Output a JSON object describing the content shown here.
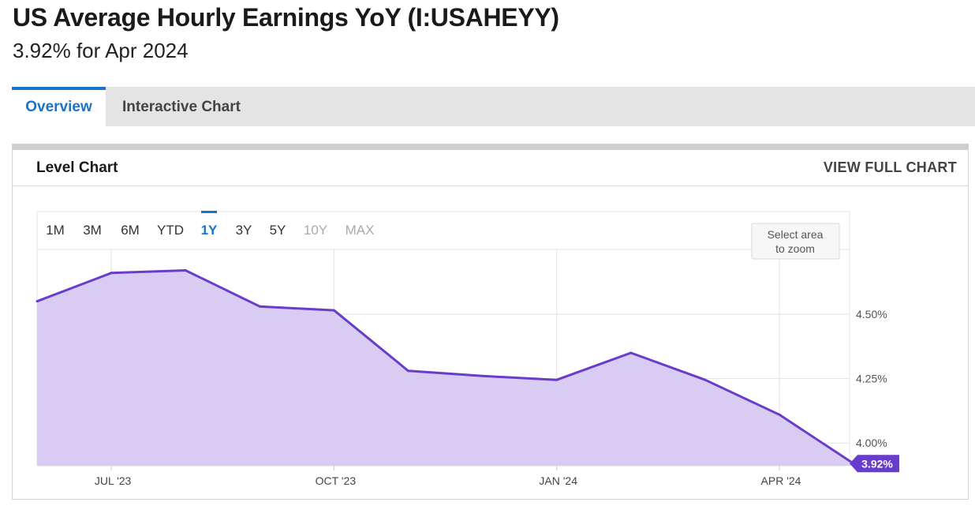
{
  "header": {
    "title": "US Average Hourly Earnings YoY (I:USAHEYY)",
    "subtitle": "3.92% for Apr 2024"
  },
  "tabs": [
    {
      "label": "Overview",
      "active": true
    },
    {
      "label": "Interactive Chart",
      "active": false
    }
  ],
  "panel": {
    "title": "Level Chart",
    "view_full_label": "VIEW FULL CHART"
  },
  "range_buttons": [
    {
      "label": "1M",
      "state": "normal"
    },
    {
      "label": "3M",
      "state": "normal"
    },
    {
      "label": "6M",
      "state": "normal"
    },
    {
      "label": "YTD",
      "state": "normal"
    },
    {
      "label": "1Y",
      "state": "selected"
    },
    {
      "label": "3Y",
      "state": "normal"
    },
    {
      "label": "5Y",
      "state": "normal"
    },
    {
      "label": "10Y",
      "state": "disabled"
    },
    {
      "label": "MAX",
      "state": "disabled"
    }
  ],
  "zoom_hint": [
    "Select area",
    "to zoom"
  ],
  "chart_data": {
    "type": "area",
    "x": [
      "2023-05",
      "2023-06",
      "2023-07",
      "2023-08",
      "2023-09",
      "2023-10",
      "2023-11",
      "2023-12",
      "2024-01",
      "2024-02",
      "2024-03",
      "2024-04"
    ],
    "series": [
      {
        "values": [
          4.55,
          4.66,
          4.67,
          4.53,
          4.515,
          4.28,
          4.26,
          4.245,
          4.35,
          4.245,
          4.11,
          3.92
        ]
      }
    ],
    "x_ticks": [
      {
        "x": "2023-06",
        "label": "JUL '23"
      },
      {
        "x": "2023-09",
        "label": "OCT '23"
      },
      {
        "x": "2023-12",
        "label": "JAN '24"
      },
      {
        "x": "2024-03",
        "label": "APR '24"
      }
    ],
    "y_ticks": [
      {
        "value": 4.5,
        "label": "4.50%"
      },
      {
        "value": 4.25,
        "label": "4.25%"
      },
      {
        "value": 4.0,
        "label": "4.00%"
      }
    ],
    "ylim": [
      3.92,
      4.755
    ],
    "last_value_label": "3.92%",
    "grid": true,
    "colors": {
      "line": "#6a3ccc",
      "fill": "#d8ccf2",
      "label_bg": "#6a3ccc",
      "selected": "#1a73c9"
    }
  }
}
